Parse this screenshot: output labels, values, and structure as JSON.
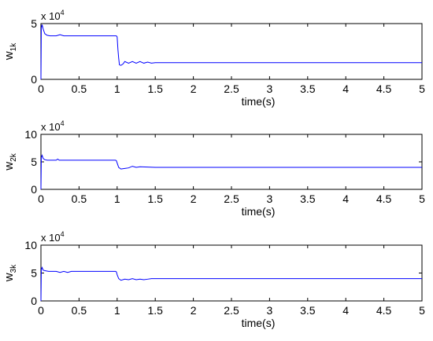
{
  "chart_data": [
    {
      "type": "line",
      "ylabel": "w",
      "ylabel_subscript": "1k",
      "xlabel": "time(s)",
      "y_exponent_label": "x 10",
      "y_exponent_power": "4",
      "xlim": [
        0,
        5
      ],
      "ylim": [
        0,
        5
      ],
      "xticks": [
        "0",
        "0.5",
        "1",
        "1.5",
        "2",
        "2.5",
        "3",
        "3.5",
        "4",
        "4.5",
        "5"
      ],
      "yticks": [
        "0",
        "5"
      ],
      "series_color": "#0000ff",
      "x": [
        0,
        0.005,
        0.015,
        0.03,
        0.05,
        0.08,
        0.12,
        0.2,
        0.25,
        0.3,
        0.5,
        0.8,
        0.98,
        0.99,
        1.0,
        1.01,
        1.02,
        1.03,
        1.05,
        1.08,
        1.1,
        1.15,
        1.2,
        1.25,
        1.3,
        1.35,
        1.4,
        1.45,
        1.5,
        2.0,
        3.0,
        4.0,
        5.0
      ],
      "y": [
        0,
        4.6,
        4.9,
        4.5,
        4.1,
        3.95,
        3.9,
        3.9,
        4.0,
        3.9,
        3.9,
        3.9,
        3.9,
        3.9,
        3.8,
        2.7,
        1.9,
        1.3,
        1.25,
        1.4,
        1.6,
        1.45,
        1.6,
        1.45,
        1.6,
        1.45,
        1.55,
        1.45,
        1.5,
        1.5,
        1.5,
        1.5,
        1.5
      ]
    },
    {
      "type": "line",
      "ylabel": "w",
      "ylabel_subscript": "2k",
      "xlabel": "time(s)",
      "y_exponent_label": "x 10",
      "y_exponent_power": "4",
      "xlim": [
        0,
        5
      ],
      "ylim": [
        0,
        10
      ],
      "xticks": [
        "0",
        "0.5",
        "1",
        "1.5",
        "2",
        "2.5",
        "3",
        "3.5",
        "4",
        "4.5",
        "5"
      ],
      "yticks": [
        "0",
        "5",
        "10"
      ],
      "series_color": "#0000ff",
      "x": [
        0,
        0.005,
        0.015,
        0.03,
        0.05,
        0.08,
        0.12,
        0.2,
        0.22,
        0.24,
        0.3,
        0.5,
        0.98,
        0.99,
        1.0,
        1.02,
        1.05,
        1.1,
        1.15,
        1.2,
        1.25,
        1.3,
        1.5,
        2.0,
        3.0,
        4.0,
        5.0
      ],
      "y": [
        0,
        5.8,
        6.2,
        5.6,
        5.4,
        5.3,
        5.3,
        5.3,
        5.5,
        5.3,
        5.3,
        5.3,
        5.3,
        5.2,
        4.8,
        4.0,
        3.7,
        3.8,
        3.9,
        4.2,
        4.0,
        4.1,
        4.0,
        4.0,
        4.0,
        4.0,
        4.0
      ]
    },
    {
      "type": "line",
      "ylabel": "w",
      "ylabel_subscript": "3k",
      "xlabel": "time(s)",
      "y_exponent_label": "x 10",
      "y_exponent_power": "4",
      "xlim": [
        0,
        5
      ],
      "ylim": [
        0,
        10
      ],
      "xticks": [
        "0",
        "0.5",
        "1",
        "1.5",
        "2",
        "2.5",
        "3",
        "3.5",
        "4",
        "4.5",
        "5"
      ],
      "yticks": [
        "0",
        "5",
        "10"
      ],
      "series_color": "#0000ff",
      "x": [
        0,
        0.005,
        0.015,
        0.03,
        0.06,
        0.1,
        0.2,
        0.25,
        0.3,
        0.35,
        0.4,
        0.5,
        0.98,
        0.99,
        1.0,
        1.02,
        1.05,
        1.1,
        1.15,
        1.2,
        1.25,
        1.3,
        1.35,
        1.4,
        1.45,
        1.5,
        2.0,
        3.0,
        4.0,
        5.0
      ],
      "y": [
        0,
        5.6,
        6.0,
        5.5,
        5.4,
        5.3,
        5.3,
        5.1,
        5.3,
        5.1,
        5.3,
        5.3,
        5.3,
        5.2,
        4.7,
        4.0,
        3.7,
        3.9,
        3.8,
        4.0,
        3.8,
        3.9,
        3.8,
        3.9,
        4.0,
        4.0,
        4.0,
        4.0,
        4.0,
        4.0
      ]
    }
  ]
}
